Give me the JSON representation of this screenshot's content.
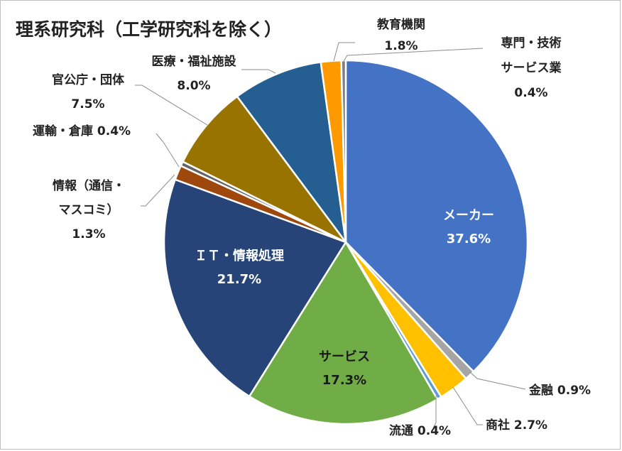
{
  "chart_data": {
    "type": "pie",
    "title": "理系研究科（工学研究科を除く）",
    "slices": [
      {
        "label": "メーカー",
        "pct_text": "37.6%",
        "value": 37.6,
        "color": "#4472C4"
      },
      {
        "label": "金融",
        "pct_text": "0.9%",
        "value": 0.9,
        "color": "#A5A5A5"
      },
      {
        "label": "商社",
        "pct_text": "2.7%",
        "value": 2.7,
        "color": "#FFC000"
      },
      {
        "label": "流通",
        "pct_text": "0.4%",
        "value": 0.4,
        "color": "#5B9BD5"
      },
      {
        "label": "サービス",
        "pct_text": "17.3%",
        "value": 17.3,
        "color": "#70AD47"
      },
      {
        "label": "ＩＴ・情報処理",
        "pct_text": "21.7%",
        "value": 21.7,
        "color": "#264478"
      },
      {
        "label": "情報（通信・マスコミ）",
        "pct_text": "1.3%",
        "value": 1.3,
        "color": "#9E480E"
      },
      {
        "label": "運輸・倉庫",
        "pct_text": "0.4%",
        "value": 0.4,
        "color": "#636363"
      },
      {
        "label": "官公庁・団体",
        "pct_text": "7.5%",
        "value": 7.5,
        "color": "#997300"
      },
      {
        "label": "医療・福祉施設",
        "pct_text": "8.0%",
        "value": 8.0,
        "color": "#255E91"
      },
      {
        "label": "教育機関",
        "pct_text": "1.8%",
        "value": 1.8,
        "color": "#FF9900"
      },
      {
        "label": "専門・技術サービス業",
        "pct_text": "0.4%",
        "value": 0.4,
        "color": "#7F7F7F"
      }
    ]
  }
}
